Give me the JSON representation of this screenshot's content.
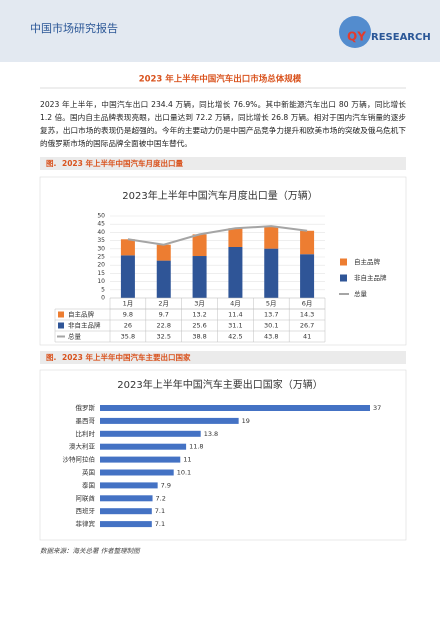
{
  "header": {
    "title": "中国市场研究报告",
    "logo": {
      "mark": "QY",
      "word": "RESEARCH"
    }
  },
  "section": {
    "title": "2023 年上半年中国汽车出口市场总体规模",
    "paragraph": "2023 年上半年，中国汽车出口 234.4 万辆，同比增长 76.9%。其中新能源汽车出口 80 万辆，同比增长 1.2 倍。国内自主品牌表现亮眼，出口量达到 72.2 万辆，同比增长 26.8 万辆。相对于国内汽车销量的逐步复苏，出口市场的表现仍是超强的。今年的主要动力仍是中国产品竞争力提升和欧美市场的突破及俄乌危机下的俄罗斯市场的国际品牌全面被中国车替代。"
  },
  "captions": [
    {
      "label": "图.",
      "text": "2023 年上半年中国汽车月度出口量"
    },
    {
      "label": "图.",
      "text": "2023 年上半年中国汽车主要出口国家"
    }
  ],
  "chart_data": [
    {
      "type": "bar",
      "stacked": true,
      "title": "2023年上半年中国汽车月度出口量（万辆）",
      "categories": [
        "1月",
        "2月",
        "3月",
        "4月",
        "5月",
        "6月"
      ],
      "series": [
        {
          "name": "自主品牌",
          "type": "bar",
          "color": "#ed7d31",
          "values": [
            9.8,
            9.7,
            13.2,
            11.4,
            13.7,
            14.3
          ]
        },
        {
          "name": "非自主品牌",
          "type": "bar",
          "color": "#2f5597",
          "values": [
            26,
            22.8,
            25.6,
            31.1,
            30.1,
            26.7
          ]
        },
        {
          "name": "总量",
          "type": "line",
          "color": "#a5a5a5",
          "values": [
            35.8,
            32.5,
            38.8,
            42.5,
            43.8,
            41
          ]
        }
      ],
      "ylim": [
        0,
        50
      ],
      "yticks": [
        0,
        5,
        10,
        15,
        20,
        25,
        30,
        35,
        40,
        45,
        50
      ],
      "grid": true,
      "legend": "right",
      "data_table": true
    },
    {
      "type": "hbar",
      "title": "2023年上半年中国汽车主要出口国家（万辆）",
      "categories": [
        "俄罗斯",
        "墨西哥",
        "比利时",
        "澳大利亚",
        "沙特阿拉伯",
        "英国",
        "泰国",
        "阿联酋",
        "西班牙",
        "菲律宾"
      ],
      "values": [
        37,
        19,
        13.8,
        11.8,
        11,
        10.1,
        7.9,
        7.2,
        7.1,
        7.1
      ],
      "color": "#4472c4"
    }
  ],
  "source": "数据来源：海关总署 作者整理制图"
}
